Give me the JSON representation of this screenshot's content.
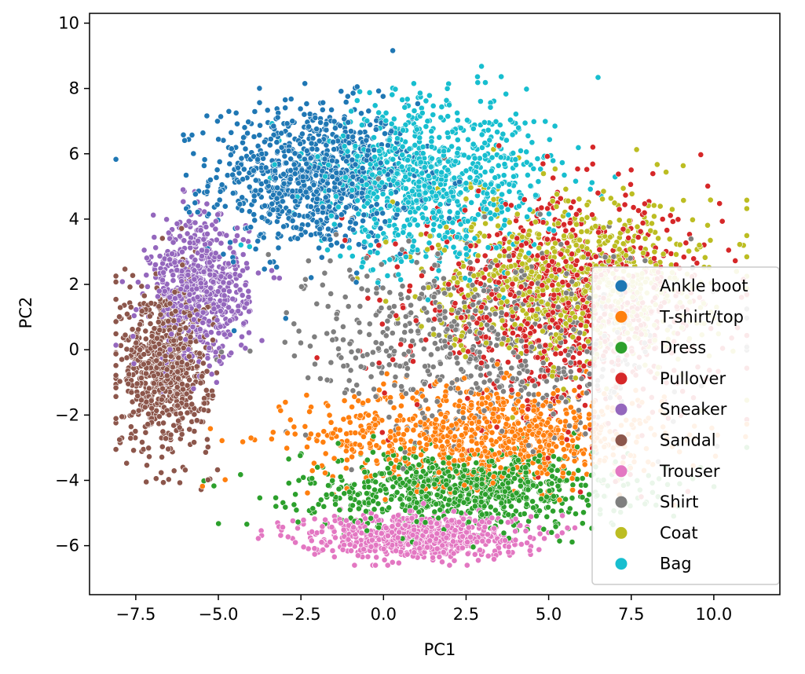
{
  "chart_data": {
    "type": "scatter",
    "title": "",
    "xlabel": "PC1",
    "ylabel": "PC2",
    "xlim": [
      -8.9,
      12.0
    ],
    "ylim": [
      -7.5,
      10.3
    ],
    "xticks": [
      -7.5,
      -5.0,
      -2.5,
      0.0,
      2.5,
      5.0,
      7.5,
      10.0
    ],
    "xtick_labels": [
      "−7.5",
      "−5.0",
      "−2.5",
      "0.0",
      "2.5",
      "5.0",
      "7.5",
      "10.0"
    ],
    "yticks": [
      -6,
      -4,
      -2,
      0,
      2,
      4,
      6,
      8,
      10
    ],
    "ytick_labels": [
      "−6",
      "−4",
      "−2",
      "0",
      "2",
      "4",
      "6",
      "8",
      "10"
    ],
    "grid": false,
    "legend_position": "lower-right",
    "series": [
      {
        "name": "Ankle boot",
        "color": "#1f77b4",
        "center": [
          -2.2,
          5.3
        ],
        "spread": [
          2.0,
          1.5
        ],
        "count": 900
      },
      {
        "name": "T-shirt/top",
        "color": "#ff7f0e",
        "center": [
          3.2,
          -2.6
        ],
        "spread": [
          3.6,
          1.0
        ],
        "count": 900
      },
      {
        "name": "Dress",
        "color": "#2ca02c",
        "center": [
          2.5,
          -4.3
        ],
        "spread": [
          3.3,
          0.8
        ],
        "count": 850
      },
      {
        "name": "Pullover",
        "color": "#d62728",
        "center": [
          5.5,
          1.3
        ],
        "spread": [
          3.0,
          2.2
        ],
        "count": 900
      },
      {
        "name": "Sneaker",
        "color": "#9467bd",
        "center": [
          -5.6,
          1.8
        ],
        "spread": [
          1.0,
          1.5
        ],
        "count": 650
      },
      {
        "name": "Sandal",
        "color": "#8c564b",
        "center": [
          -6.6,
          -0.5
        ],
        "spread": [
          0.9,
          1.7
        ],
        "count": 750
      },
      {
        "name": "Trouser",
        "color": "#e377c2",
        "center": [
          0.9,
          -5.7
        ],
        "spread": [
          2.2,
          0.45
        ],
        "count": 700
      },
      {
        "name": "Shirt",
        "color": "#7f7f7f",
        "center": [
          3.0,
          0.2
        ],
        "spread": [
          3.6,
          2.0
        ],
        "count": 700
      },
      {
        "name": "Coat",
        "color": "#bcbd22",
        "center": [
          5.8,
          2.1
        ],
        "spread": [
          2.7,
          1.7
        ],
        "count": 850
      },
      {
        "name": "Bag",
        "color": "#17becf",
        "center": [
          1.5,
          5.2
        ],
        "spread": [
          2.4,
          1.7
        ],
        "count": 900
      }
    ]
  }
}
